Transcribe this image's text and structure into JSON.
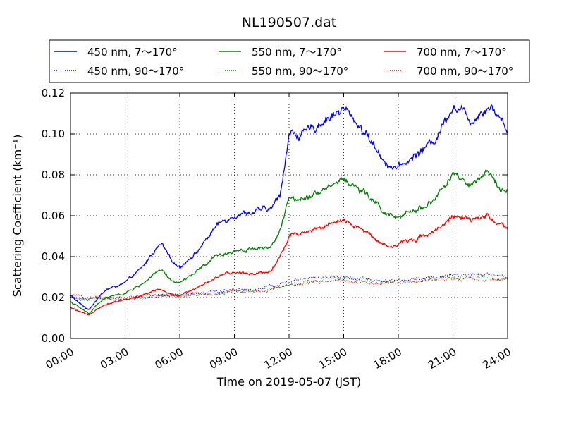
{
  "chart_data": {
    "type": "line",
    "title": "NL190507.dat",
    "xlabel": "Time on 2019-05-07 (JST)",
    "ylabel": "Scattering Coefficient (km⁻¹)",
    "xlim": [
      0,
      24
    ],
    "ylim": [
      0,
      0.12
    ],
    "x_ticks": [
      "00:00",
      "03:00",
      "06:00",
      "09:00",
      "12:00",
      "15:00",
      "18:00",
      "21:00",
      "24:00"
    ],
    "y_ticks": [
      "0.00",
      "0.02",
      "0.04",
      "0.06",
      "0.08",
      "0.10",
      "0.12"
    ],
    "grid": true,
    "legend_position": "above plot",
    "series": [
      {
        "name": "450 nm, 7～170°",
        "color": "#0000ff",
        "style": "solid",
        "x": [
          0,
          0.5,
          1,
          1.5,
          2,
          3,
          4,
          4.5,
          5,
          5.5,
          6,
          7,
          8,
          9,
          10,
          11,
          11.5,
          12,
          13,
          14,
          15,
          16,
          17,
          17.5,
          18,
          19,
          20,
          21,
          22,
          23,
          24
        ],
        "y": [
          0.021,
          0.017,
          0.014,
          0.02,
          0.024,
          0.027,
          0.035,
          0.042,
          0.046,
          0.038,
          0.035,
          0.043,
          0.055,
          0.061,
          0.062,
          0.063,
          0.07,
          0.1,
          0.1,
          0.108,
          0.112,
          0.103,
          0.09,
          0.085,
          0.083,
          0.09,
          0.097,
          0.115,
          0.107,
          0.115,
          0.103
        ]
      },
      {
        "name": "550 nm, 7～170°",
        "color": "#008000",
        "style": "solid",
        "x": [
          0,
          0.5,
          1,
          1.5,
          2,
          3,
          4,
          4.5,
          5,
          5.5,
          6,
          7,
          8,
          9,
          10,
          11,
          11.5,
          12,
          13,
          14,
          15,
          16,
          17,
          17.5,
          18,
          19,
          20,
          21,
          22,
          23,
          24
        ],
        "y": [
          0.018,
          0.015,
          0.012,
          0.017,
          0.02,
          0.022,
          0.027,
          0.031,
          0.033,
          0.028,
          0.027,
          0.033,
          0.04,
          0.043,
          0.044,
          0.045,
          0.052,
          0.068,
          0.07,
          0.074,
          0.078,
          0.072,
          0.064,
          0.06,
          0.058,
          0.063,
          0.068,
          0.08,
          0.074,
          0.08,
          0.072
        ]
      },
      {
        "name": "700 nm, 7～170°",
        "color": "#ff0000",
        "style": "solid",
        "x": [
          0,
          0.5,
          1,
          1.5,
          2,
          3,
          4,
          4.5,
          5,
          5.5,
          6,
          7,
          8,
          9,
          10,
          11,
          11.5,
          12,
          13,
          14,
          15,
          16,
          17,
          17.5,
          18,
          19,
          20,
          21,
          22,
          23,
          24
        ],
        "y": [
          0.015,
          0.013,
          0.011,
          0.015,
          0.017,
          0.019,
          0.021,
          0.023,
          0.024,
          0.022,
          0.021,
          0.025,
          0.03,
          0.032,
          0.032,
          0.033,
          0.04,
          0.05,
          0.053,
          0.055,
          0.057,
          0.053,
          0.048,
          0.045,
          0.046,
          0.049,
          0.053,
          0.06,
          0.057,
          0.06,
          0.052
        ]
      },
      {
        "name": "450 nm, 90～170°",
        "color": "#0000ff",
        "style": "dotted",
        "x": [
          0,
          1,
          2,
          3,
          4,
          5,
          6,
          7,
          8,
          9,
          10,
          11,
          12,
          13,
          14,
          15,
          16,
          17,
          18,
          19,
          20,
          21,
          22,
          23,
          24
        ],
        "y": [
          0.02,
          0.019,
          0.019,
          0.019,
          0.02,
          0.021,
          0.021,
          0.022,
          0.023,
          0.024,
          0.024,
          0.025,
          0.028,
          0.029,
          0.03,
          0.03,
          0.029,
          0.028,
          0.028,
          0.029,
          0.03,
          0.031,
          0.031,
          0.031,
          0.03
        ]
      },
      {
        "name": "550 nm, 90～170°",
        "color": "#008000",
        "style": "dotted",
        "x": [
          0,
          1,
          2,
          3,
          4,
          5,
          6,
          7,
          8,
          9,
          10,
          11,
          12,
          13,
          14,
          15,
          16,
          17,
          18,
          19,
          20,
          21,
          22,
          23,
          24
        ],
        "y": [
          0.02,
          0.019,
          0.019,
          0.019,
          0.02,
          0.021,
          0.021,
          0.022,
          0.022,
          0.023,
          0.024,
          0.024,
          0.027,
          0.028,
          0.029,
          0.029,
          0.028,
          0.027,
          0.027,
          0.028,
          0.029,
          0.03,
          0.03,
          0.03,
          0.029
        ]
      },
      {
        "name": "700 nm, 90～170°",
        "color": "#ff0000",
        "style": "dotted",
        "x": [
          0,
          1,
          2,
          3,
          4,
          5,
          6,
          7,
          8,
          9,
          10,
          11,
          12,
          13,
          14,
          15,
          16,
          17,
          18,
          19,
          20,
          21,
          22,
          23,
          24
        ],
        "y": [
          0.021,
          0.02,
          0.02,
          0.02,
          0.021,
          0.021,
          0.021,
          0.022,
          0.022,
          0.023,
          0.023,
          0.024,
          0.027,
          0.027,
          0.028,
          0.028,
          0.027,
          0.027,
          0.027,
          0.028,
          0.028,
          0.029,
          0.029,
          0.029,
          0.029
        ]
      }
    ]
  }
}
